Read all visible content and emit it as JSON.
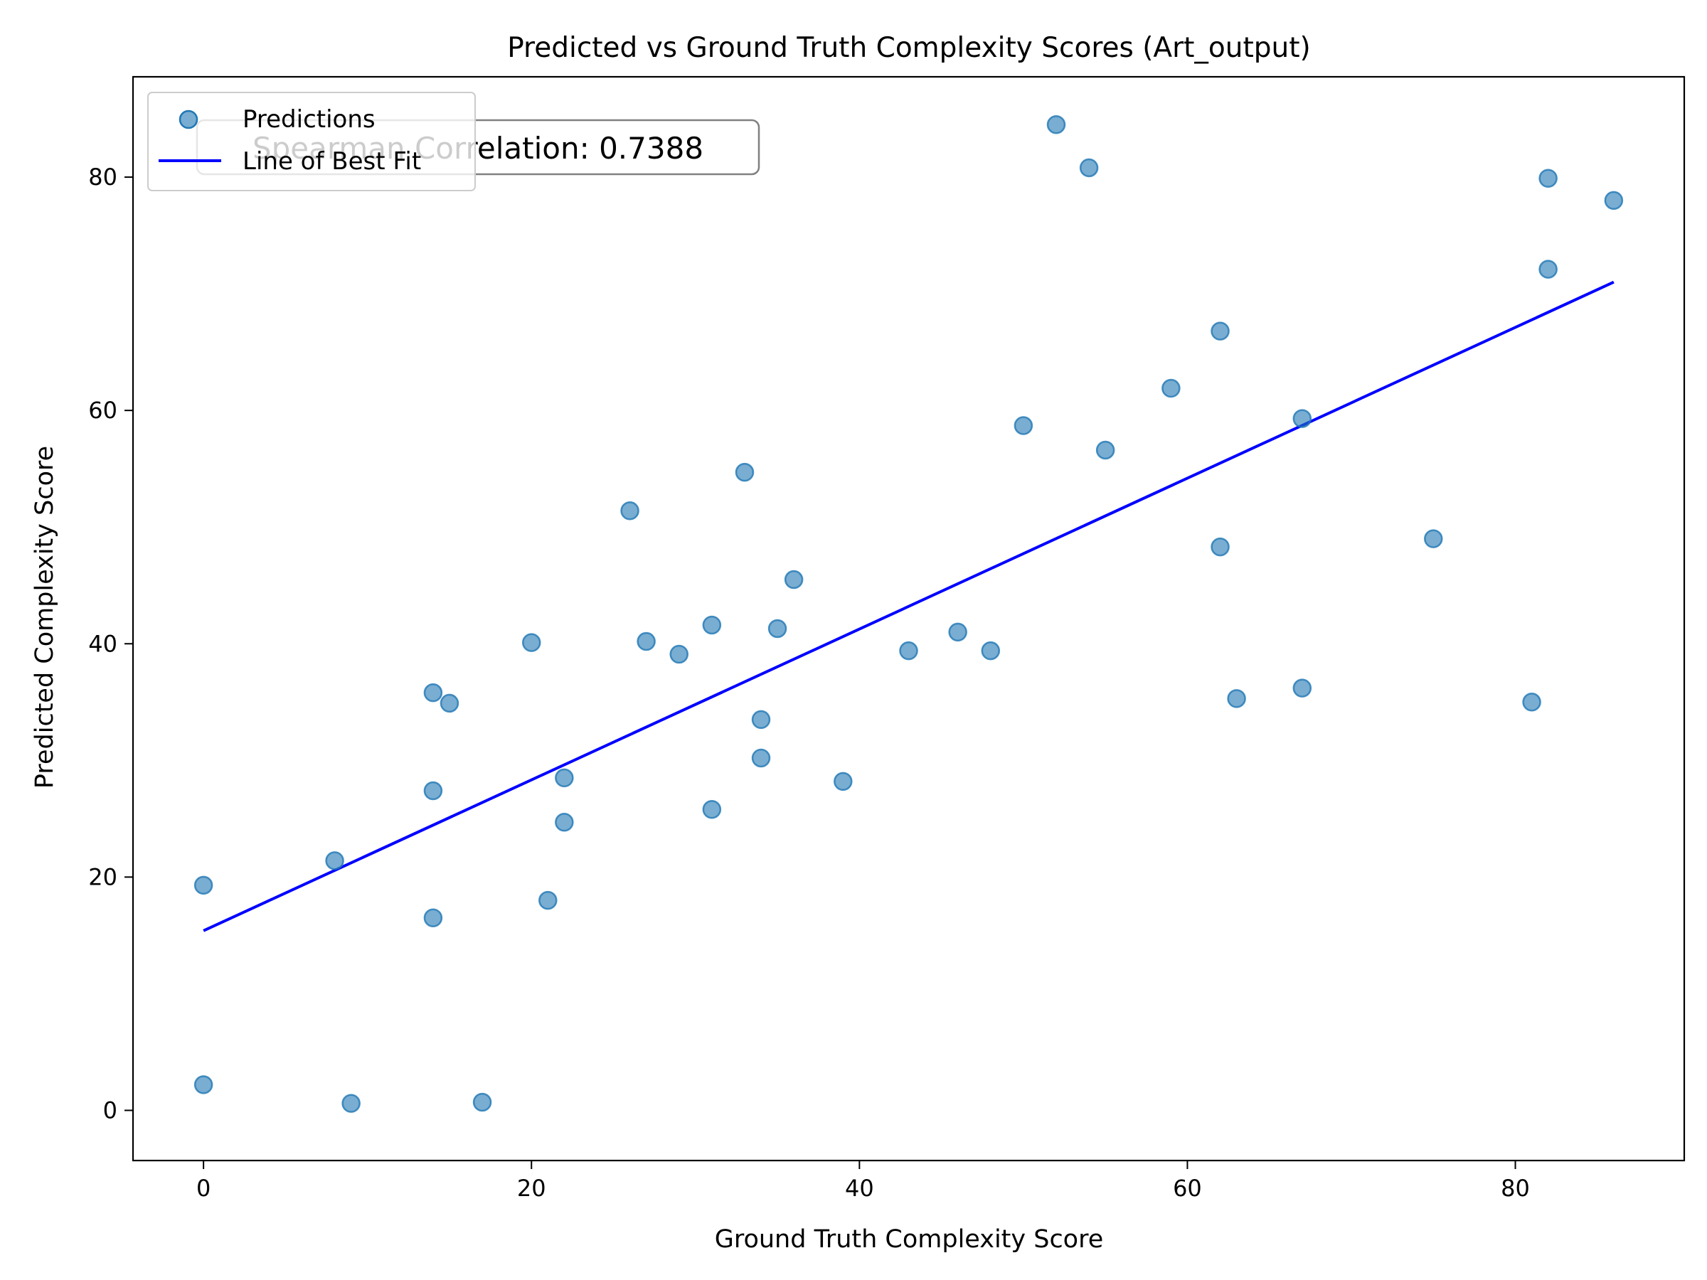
{
  "chart_data": {
    "type": "scatter",
    "title": "Predicted vs Ground Truth Complexity Scores (Art_output)",
    "xlabel": "Ground Truth Complexity Score",
    "ylabel": "Predicted Complexity Score",
    "xlim": [
      -4.3,
      90.3
    ],
    "ylim": [
      -4.3,
      88.6
    ],
    "xticks": [
      0,
      20,
      40,
      60,
      80
    ],
    "yticks": [
      0,
      20,
      40,
      60,
      80
    ],
    "grid": false,
    "legend": {
      "placement": "upper-left",
      "entries": [
        "Predictions",
        "Line of Best Fit"
      ]
    },
    "annotation": "Spearman Correlation: 0.7388",
    "series": [
      {
        "name": "Predictions",
        "kind": "scatter",
        "color": "#1f77b4",
        "alpha": 0.6,
        "points": [
          [
            0,
            19.3
          ],
          [
            0,
            2.2
          ],
          [
            8,
            21.4
          ],
          [
            9,
            0.6
          ],
          [
            14,
            35.8
          ],
          [
            14,
            27.4
          ],
          [
            14,
            16.5
          ],
          [
            15,
            34.9
          ],
          [
            17,
            0.7
          ],
          [
            20,
            40.1
          ],
          [
            21,
            18.0
          ],
          [
            22,
            28.5
          ],
          [
            22,
            24.7
          ],
          [
            26,
            51.4
          ],
          [
            27,
            40.2
          ],
          [
            29,
            39.1
          ],
          [
            31,
            41.6
          ],
          [
            31,
            25.8
          ],
          [
            33,
            54.7
          ],
          [
            34,
            33.5
          ],
          [
            34,
            30.2
          ],
          [
            35,
            41.3
          ],
          [
            36,
            45.5
          ],
          [
            39,
            28.2
          ],
          [
            43,
            39.4
          ],
          [
            46,
            41.0
          ],
          [
            48,
            39.4
          ],
          [
            50,
            58.7
          ],
          [
            52,
            84.5
          ],
          [
            54,
            80.8
          ],
          [
            55,
            56.6
          ],
          [
            59,
            61.9
          ],
          [
            62,
            66.8
          ],
          [
            62,
            48.3
          ],
          [
            63,
            35.3
          ],
          [
            67,
            59.3
          ],
          [
            67,
            36.2
          ],
          [
            75,
            49.0
          ],
          [
            81,
            35.0
          ],
          [
            82,
            79.9
          ],
          [
            82,
            72.1
          ],
          [
            86,
            78.0
          ]
        ]
      },
      {
        "name": "Line of Best Fit",
        "kind": "line",
        "color": "#0000ff",
        "points": [
          [
            0,
            15.4
          ],
          [
            86,
            71.0
          ]
        ]
      }
    ]
  }
}
